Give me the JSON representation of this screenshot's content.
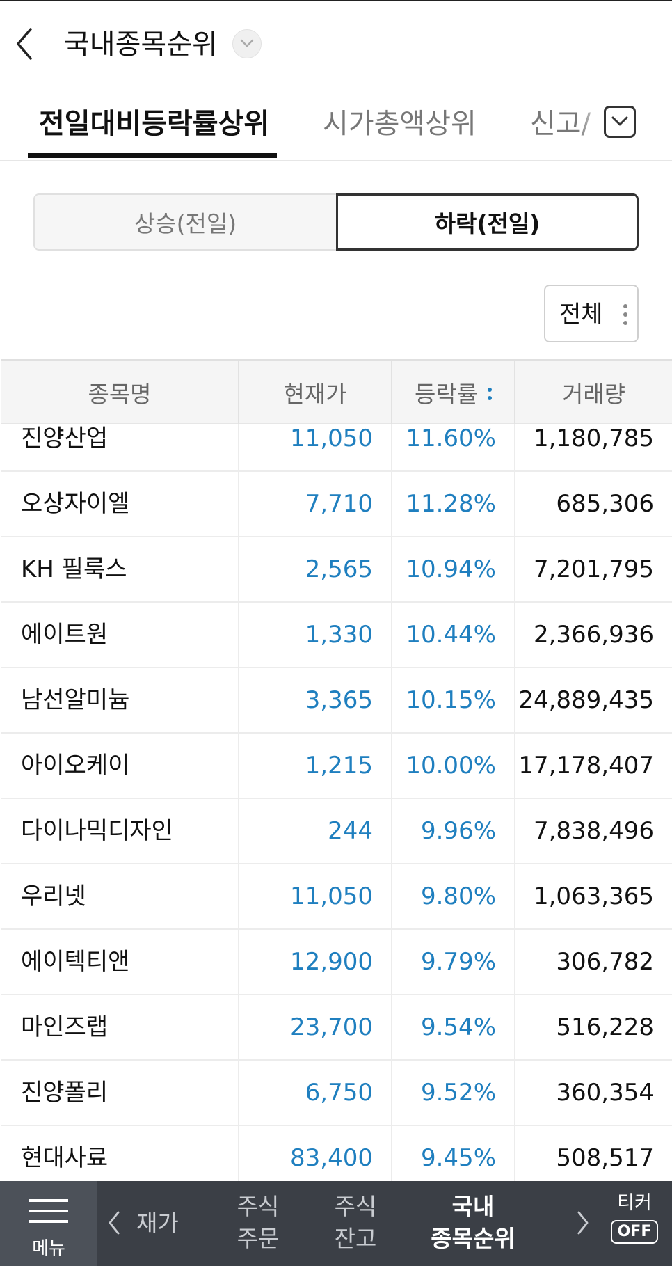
{
  "header": {
    "title": "국내종목순위"
  },
  "tabs": [
    {
      "label": "전일대비등락률상위",
      "active": true
    },
    {
      "label": "시가총액상위",
      "active": false
    },
    {
      "label": "신고/",
      "active": false
    }
  ],
  "segments": {
    "left": "상승(전일)",
    "right": "하락(전일)",
    "selected": "right"
  },
  "filter": {
    "label": "전체"
  },
  "table": {
    "columns": [
      "종목명",
      "현재가",
      "등락률",
      "거래량"
    ],
    "rows": [
      {
        "name": "진양산업",
        "price": "11,050",
        "rate": "11.60%",
        "volume": "1,180,785"
      },
      {
        "name": "오상자이엘",
        "price": "7,710",
        "rate": "11.28%",
        "volume": "685,306"
      },
      {
        "name": "KH 필룩스",
        "price": "2,565",
        "rate": "10.94%",
        "volume": "7,201,795"
      },
      {
        "name": "에이트원",
        "price": "1,330",
        "rate": "10.44%",
        "volume": "2,366,936"
      },
      {
        "name": "남선알미늄",
        "price": "3,365",
        "rate": "10.15%",
        "volume": "24,889,435"
      },
      {
        "name": "아이오케이",
        "price": "1,215",
        "rate": "10.00%",
        "volume": "17,178,407"
      },
      {
        "name": "다이나믹디자인",
        "price": "244",
        "rate": "9.96%",
        "volume": "7,838,496"
      },
      {
        "name": "우리넷",
        "price": "11,050",
        "rate": "9.80%",
        "volume": "1,063,365"
      },
      {
        "name": "에이텍티앤",
        "price": "12,900",
        "rate": "9.79%",
        "volume": "306,782"
      },
      {
        "name": "마인즈랩",
        "price": "23,700",
        "rate": "9.54%",
        "volume": "516,228"
      },
      {
        "name": "진양폴리",
        "price": "6,750",
        "rate": "9.52%",
        "volume": "360,354"
      },
      {
        "name": "현대사료",
        "price": "83,400",
        "rate": "9.45%",
        "volume": "508,517"
      }
    ]
  },
  "bottom_nav": {
    "menu_label": "메뉴",
    "items": [
      {
        "label": "재가",
        "active": false
      },
      {
        "label": "주식\n주문",
        "active": false
      },
      {
        "label": "주식\n잔고",
        "active": false
      },
      {
        "label": "국내\n종목순위",
        "active": true
      }
    ],
    "ticker_label": "티커",
    "ticker_state": "OFF"
  },
  "colors": {
    "accent_blue": "#1f7fbf",
    "bottom_bar": "#3b3f46"
  }
}
